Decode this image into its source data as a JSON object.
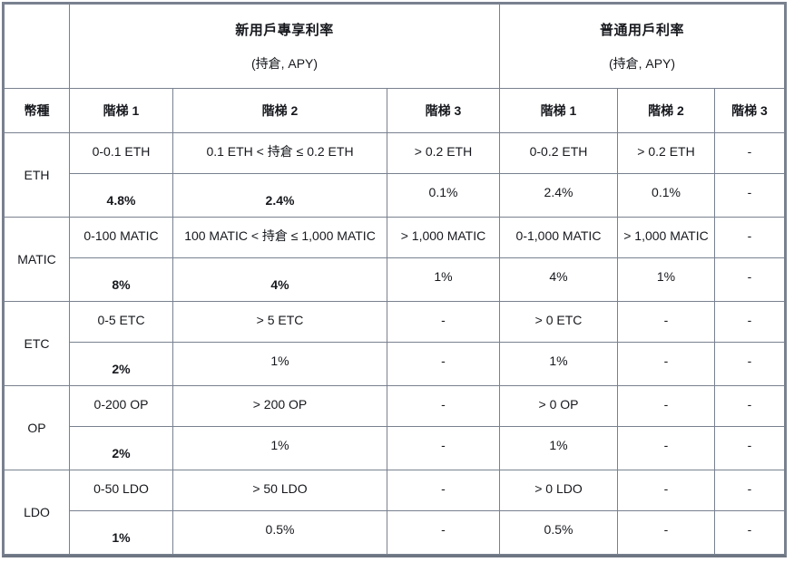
{
  "header": {
    "empty": "",
    "currency_col": "幣種",
    "new_user": {
      "title": "新用戶專享利率",
      "subtitle": "(持倉, APY)"
    },
    "regular_user": {
      "title": "普通用戶利率",
      "subtitle": "(持倉, APY)"
    },
    "tiers": [
      "階梯 1",
      "階梯 2",
      "階梯 3",
      "階梯 1",
      "階梯 2",
      "階梯 3"
    ]
  },
  "rows": [
    {
      "currency": "ETH",
      "ranges": [
        "0-0.1 ETH",
        "0.1 ETH < 持倉 ≤ 0.2 ETH",
        "> 0.2 ETH",
        "0-0.2 ETH",
        "> 0.2 ETH",
        "-"
      ],
      "values": [
        "4.8%",
        "2.4%",
        "0.1%",
        "2.4%",
        "0.1%",
        "-"
      ]
    },
    {
      "currency": "MATIC",
      "ranges": [
        "0-100 MATIC",
        "100 MATIC < 持倉 ≤ 1,000 MATIC",
        "> 1,000 MATIC",
        "0-1,000 MATIC",
        "> 1,000 MATIC",
        "-"
      ],
      "values": [
        "8%",
        "4%",
        "1%",
        "4%",
        "1%",
        "-"
      ]
    },
    {
      "currency": "ETC",
      "ranges": [
        "0-5 ETC",
        "> 5 ETC",
        "-",
        "> 0 ETC",
        "-",
        "-"
      ],
      "values": [
        "2%",
        "1%",
        "-",
        "1%",
        "-",
        "-"
      ]
    },
    {
      "currency": "OP",
      "ranges": [
        "0-200 OP",
        "> 200 OP",
        "-",
        "> 0 OP",
        "-",
        "-"
      ],
      "values": [
        "2%",
        "1%",
        "-",
        "1%",
        "-",
        "-"
      ]
    },
    {
      "currency": "LDO",
      "ranges": [
        "0-50 LDO",
        "> 50 LDO",
        "-",
        "> 0 LDO",
        "-",
        "-"
      ],
      "values": [
        "1%",
        "0.5%",
        "-",
        "0.5%",
        "-",
        "-"
      ]
    }
  ],
  "colors": {
    "border": "#79818f",
    "border_bottom": "#6e7683",
    "text": "#16181d"
  }
}
